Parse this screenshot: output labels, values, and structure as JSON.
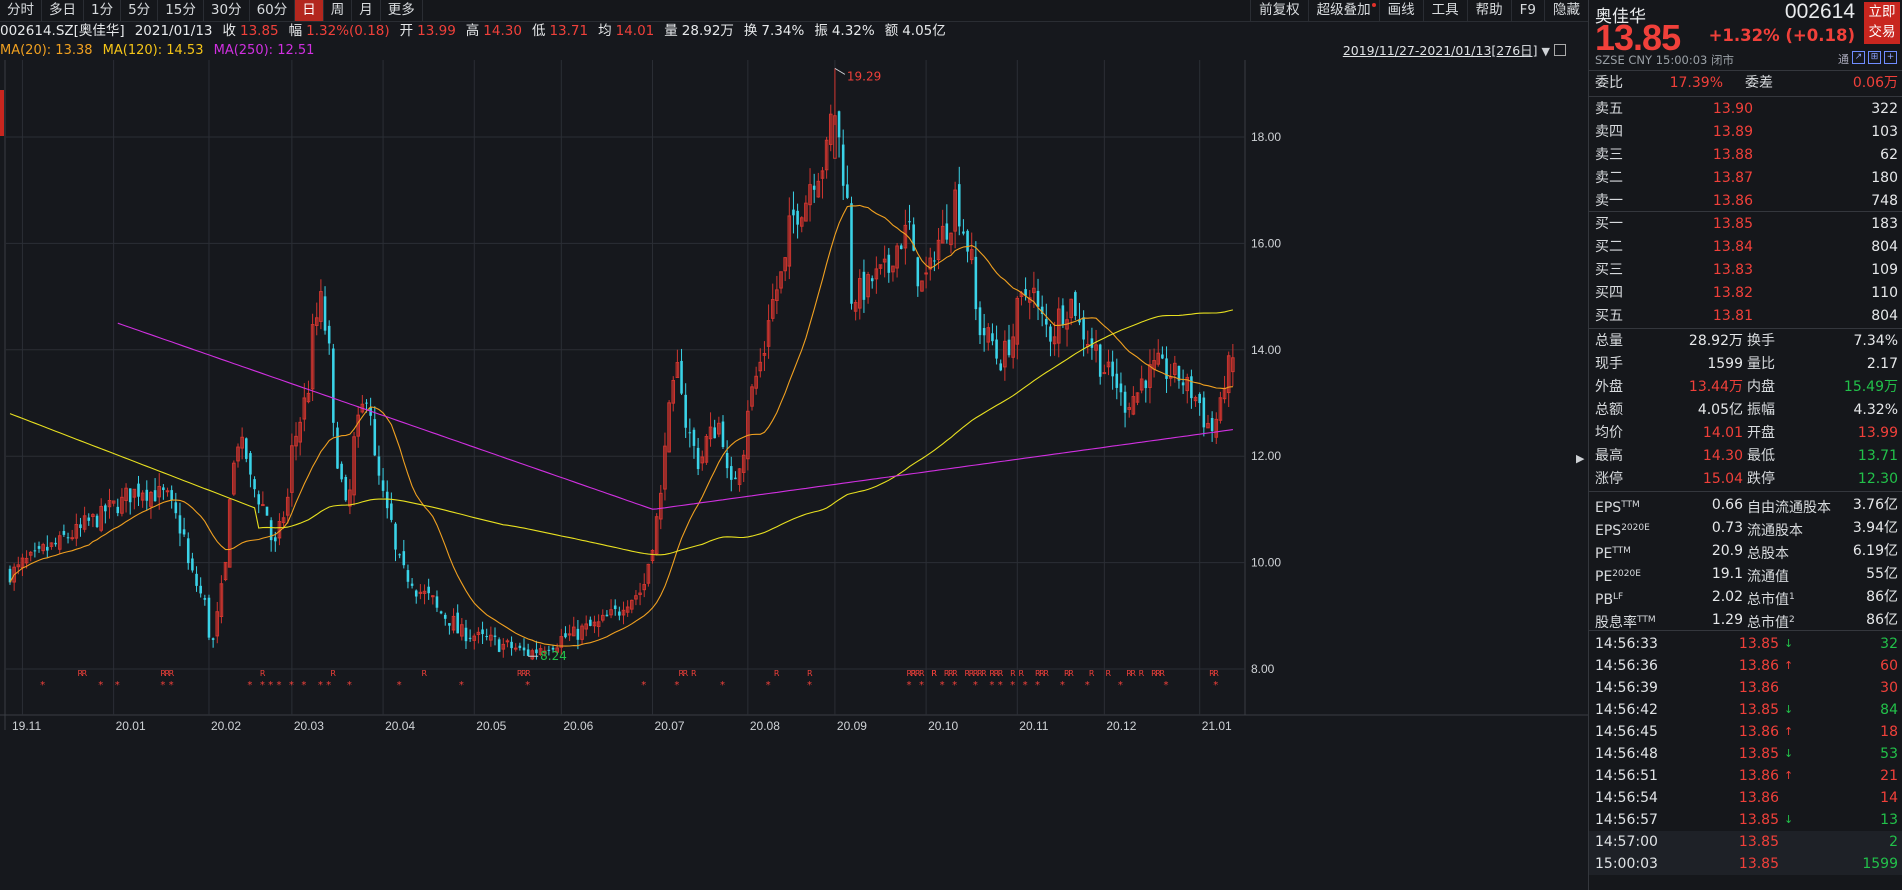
{
  "periods": [
    "分时",
    "多日",
    "1分",
    "5分",
    "15分",
    "30分",
    "60分",
    "日",
    "周",
    "月",
    "更多"
  ],
  "active_period": "日",
  "tools": [
    "前复权",
    "超级叠加",
    "画线",
    "工具",
    "帮助",
    "F9",
    "隐藏"
  ],
  "info": {
    "symbol": "002614.SZ[奥佳华]",
    "date": "2021/01/13",
    "close_label": "收",
    "close": "13.85",
    "amp_label": "幅",
    "amp": "1.32%(0.18)",
    "open_label": "开",
    "open": "13.99",
    "high_label": "高",
    "high": "14.30",
    "low_label": "低",
    "low": "13.71",
    "avg_label": "均",
    "avg": "14.01",
    "vol_label": "量",
    "vol": "28.92万",
    "turn_label": "换",
    "turn": "7.34%",
    "swing_label": "振",
    "swing": "4.32%",
    "amount_label": "额",
    "amount": "4.05亿"
  },
  "ma": {
    "ma20": "MA(20): 13.38",
    "ma120": "MA(120): 14.53",
    "ma250": "MA(250): 12.51"
  },
  "range_text": "2019/11/27-2021/01/13[276日]",
  "colors": {
    "up": "#f0403a",
    "down": "#3ad3e8",
    "ma20": "#f0a020",
    "ma120": "#e8e020",
    "ma250": "#d030e0",
    "green": "#22c04a"
  },
  "chart_data": {
    "type": "candlestick",
    "x_ticks": [
      "19.11",
      "20.01",
      "20.02",
      "20.03",
      "20.04",
      "20.05",
      "20.06",
      "20.07",
      "20.08",
      "20.09",
      "20.10",
      "20.11",
      "20.12",
      "21.01"
    ],
    "y_ticks": [
      "18.00",
      "16.00",
      "14.00",
      "12.00",
      "10.00",
      "8.00"
    ],
    "ylim": [
      7.6,
      19.8
    ],
    "annotations": {
      "high": "19.29",
      "low": "8.24"
    },
    "markers_R": "R",
    "markers_star": "*",
    "anchors": [
      {
        "m": "2019-11-27",
        "p": 9.8
      },
      {
        "m": "2019-12-20",
        "p": 10.6
      },
      {
        "m": "2020-01-10",
        "p": 11.4
      },
      {
        "m": "2020-01-20",
        "p": 11.2
      },
      {
        "m": "2020-02-04",
        "p": 8.5
      },
      {
        "m": "2020-02-12",
        "p": 12.3
      },
      {
        "m": "2020-02-25",
        "p": 10.3
      },
      {
        "m": "2020-03-05",
        "p": 13.0
      },
      {
        "m": "2020-03-11",
        "p": 14.9
      },
      {
        "m": "2020-03-19",
        "p": 11.0
      },
      {
        "m": "2020-03-26",
        "p": 13.2
      },
      {
        "m": "2020-04-02",
        "p": 10.9
      },
      {
        "m": "2020-04-08",
        "p": 9.8
      },
      {
        "m": "2020-04-27",
        "p": 8.7
      },
      {
        "m": "2020-05-20",
        "p": 8.3
      },
      {
        "m": "2020-06-15",
        "p": 8.9
      },
      {
        "m": "2020-06-29",
        "p": 9.6
      },
      {
        "m": "2020-07-09",
        "p": 13.6
      },
      {
        "m": "2020-07-16",
        "p": 11.9
      },
      {
        "m": "2020-07-23",
        "p": 12.6
      },
      {
        "m": "2020-07-28",
        "p": 11.4
      },
      {
        "m": "2020-08-07",
        "p": 14.0
      },
      {
        "m": "2020-08-18",
        "p": 16.5
      },
      {
        "m": "2020-08-27",
        "p": 17.5
      },
      {
        "m": "2020-09-01",
        "p": 18.5
      },
      {
        "m": "2020-09-07",
        "p": 15.0
      },
      {
        "m": "2020-09-18",
        "p": 15.5
      },
      {
        "m": "2020-09-25",
        "p": 16.3
      },
      {
        "m": "2020-09-30",
        "p": 15.2
      },
      {
        "m": "2020-10-12",
        "p": 16.9
      },
      {
        "m": "2020-10-20",
        "p": 14.4
      },
      {
        "m": "2020-10-27",
        "p": 13.8
      },
      {
        "m": "2020-11-05",
        "p": 15.2
      },
      {
        "m": "2020-11-12",
        "p": 14.3
      },
      {
        "m": "2020-11-19",
        "p": 14.9
      },
      {
        "m": "2020-11-26",
        "p": 14.1
      },
      {
        "m": "2020-12-08",
        "p": 13.0
      },
      {
        "m": "2020-12-18",
        "p": 13.7
      },
      {
        "m": "2020-12-28",
        "p": 13.4
      },
      {
        "m": "2021-01-06",
        "p": 12.5
      },
      {
        "m": "2021-01-13",
        "p": 13.85
      }
    ]
  },
  "side": {
    "name": "奥佳华",
    "code": "002614",
    "trade_btn": [
      "立即",
      "交易"
    ],
    "price": "13.85",
    "change": "+1.32% (+0.18)",
    "sub": "SZSE   CNY   15:00:03   闭市",
    "icons": [
      "通",
      "↗",
      "⊞",
      "+"
    ],
    "weibi": {
      "l": "委比",
      "v": "17.39%",
      "l2": "委差",
      "v2": "0.06万"
    },
    "asks": [
      {
        "l": "卖五",
        "p": "13.90",
        "v": "322"
      },
      {
        "l": "卖四",
        "p": "13.89",
        "v": "103"
      },
      {
        "l": "卖三",
        "p": "13.88",
        "v": "62"
      },
      {
        "l": "卖二",
        "p": "13.87",
        "v": "180"
      },
      {
        "l": "卖一",
        "p": "13.86",
        "v": "748"
      }
    ],
    "bids": [
      {
        "l": "买一",
        "p": "13.85",
        "v": "183"
      },
      {
        "l": "买二",
        "p": "13.84",
        "v": "804"
      },
      {
        "l": "买三",
        "p": "13.83",
        "v": "109"
      },
      {
        "l": "买四",
        "p": "13.82",
        "v": "110"
      },
      {
        "l": "买五",
        "p": "13.81",
        "v": "804"
      }
    ],
    "stats": [
      {
        "l": "总量",
        "v": "28.92万",
        "l2": "换手",
        "v2": "7.34%",
        "c": "w",
        "c2": "w"
      },
      {
        "l": "现手",
        "v": "1599",
        "l2": "量比",
        "v2": "2.17",
        "c": "w",
        "c2": "w"
      },
      {
        "l": "外盘",
        "v": "13.44万",
        "l2": "内盘",
        "v2": "15.49万",
        "c": "r",
        "c2": "g"
      },
      {
        "l": "总额",
        "v": "4.05亿",
        "l2": "振幅",
        "v2": "4.32%",
        "c": "w",
        "c2": "w"
      },
      {
        "l": "均价",
        "v": "14.01",
        "l2": "开盘",
        "v2": "13.99",
        "c": "r",
        "c2": "r"
      },
      {
        "l": "最高",
        "v": "14.30",
        "l2": "最低",
        "v2": "13.71",
        "c": "r",
        "c2": "g"
      },
      {
        "l": "涨停",
        "v": "15.04",
        "l2": "跌停",
        "v2": "12.30",
        "c": "r",
        "c2": "g"
      }
    ],
    "fund": [
      {
        "l": "EPS",
        "s": "TTM",
        "v": "0.66",
        "l2": "自由流通股本",
        "s2": "",
        "v2": "3.76亿"
      },
      {
        "l": "EPS",
        "s": "2020E",
        "v": "0.73",
        "l2": "流通股本",
        "s2": "",
        "v2": "3.94亿"
      },
      {
        "l": "PE",
        "s": "TTM",
        "v": "20.9",
        "l2": "总股本",
        "s2": "",
        "v2": "6.19亿"
      },
      {
        "l": "PE",
        "s": "2020E",
        "v": "19.1",
        "l2": "流通值",
        "s2": "",
        "v2": "55亿"
      },
      {
        "l": "PB",
        "s": "LF",
        "v": "2.02",
        "l2": "总市值",
        "s2": "1",
        "v2": "86亿"
      },
      {
        "l": "股息率",
        "s": "TTM",
        "v": "1.29",
        "l2": "总市值",
        "s2": "2",
        "v2": "86亿"
      }
    ],
    "ticks": [
      {
        "t": "14:56:33",
        "p": "13.85",
        "a": "down",
        "v": "32",
        "c": "g"
      },
      {
        "t": "14:56:36",
        "p": "13.86",
        "a": "up",
        "v": "60",
        "c": "r"
      },
      {
        "t": "14:56:39",
        "p": "13.86",
        "a": "",
        "v": "30",
        "c": "r"
      },
      {
        "t": "14:56:42",
        "p": "13.85",
        "a": "down",
        "v": "84",
        "c": "g"
      },
      {
        "t": "14:56:45",
        "p": "13.86",
        "a": "up",
        "v": "18",
        "c": "r"
      },
      {
        "t": "14:56:48",
        "p": "13.85",
        "a": "down",
        "v": "53",
        "c": "g"
      },
      {
        "t": "14:56:51",
        "p": "13.86",
        "a": "up",
        "v": "21",
        "c": "r"
      },
      {
        "t": "14:56:54",
        "p": "13.86",
        "a": "",
        "v": "14",
        "c": "r"
      },
      {
        "t": "14:56:57",
        "p": "13.85",
        "a": "down",
        "v": "13",
        "c": "g"
      },
      {
        "t": "14:57:00",
        "p": "13.85",
        "a": "",
        "v": "2",
        "c": "g"
      },
      {
        "t": "15:00:03",
        "p": "13.85",
        "a": "",
        "v": "1599",
        "c": "g"
      }
    ]
  }
}
